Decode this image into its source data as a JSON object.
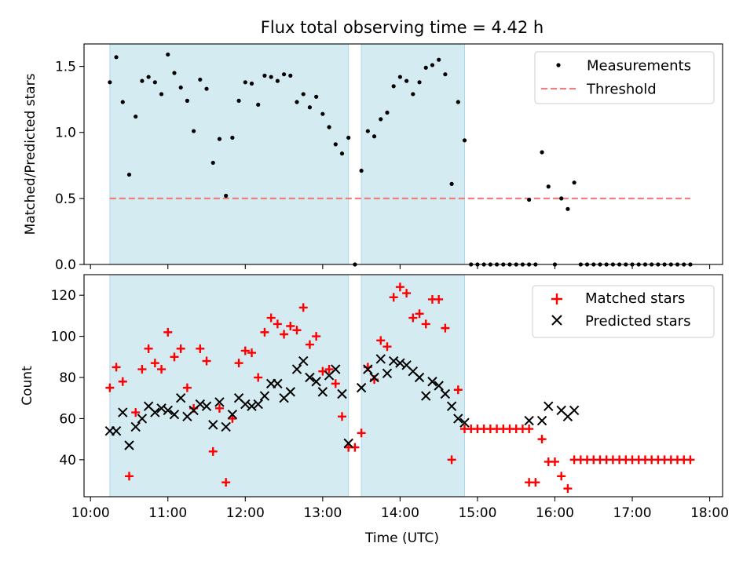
{
  "title": "Flux total observing time = 4.42 h",
  "shaded_intervals": [
    [
      "10:15",
      "13:20"
    ],
    [
      "13:30",
      "14:50"
    ]
  ],
  "colors": {
    "shade": "#add8e6",
    "threshold": "#f08080",
    "matched": "#ff0000",
    "predicted": "#000000",
    "measurement": "#000000"
  },
  "chart_data": [
    {
      "type": "scatter",
      "ylabel": "Matched/Predicted stars",
      "xlim": [
        "09:55",
        "18:10"
      ],
      "ylim": [
        0,
        1.67
      ],
      "yticks": [
        0.0,
        0.5,
        1.0,
        1.5
      ],
      "ytick_labels": [
        "0.0",
        "0.5",
        "1.0",
        "1.5"
      ],
      "legend": {
        "placement": "upper right",
        "entries": [
          "Measurements",
          "Threshold"
        ]
      },
      "threshold": {
        "name": "Threshold",
        "value": 0.5,
        "x_range": [
          "10:15",
          "17:45"
        ],
        "style": "dashed"
      },
      "series": [
        {
          "name": "Measurements",
          "marker": "dot",
          "points": [
            [
              "10:15",
              1.38
            ],
            [
              "10:20",
              1.57
            ],
            [
              "10:25",
              1.23
            ],
            [
              "10:30",
              0.68
            ],
            [
              "10:35",
              1.12
            ],
            [
              "10:40",
              1.39
            ],
            [
              "10:45",
              1.42
            ],
            [
              "10:50",
              1.38
            ],
            [
              "10:55",
              1.29
            ],
            [
              "11:00",
              1.59
            ],
            [
              "11:05",
              1.45
            ],
            [
              "11:10",
              1.34
            ],
            [
              "11:15",
              1.24
            ],
            [
              "11:20",
              1.01
            ],
            [
              "11:25",
              1.4
            ],
            [
              "11:30",
              1.33
            ],
            [
              "11:35",
              0.77
            ],
            [
              "11:40",
              0.95
            ],
            [
              "11:45",
              0.52
            ],
            [
              "11:50",
              0.96
            ],
            [
              "11:55",
              1.24
            ],
            [
              "12:00",
              1.38
            ],
            [
              "12:05",
              1.37
            ],
            [
              "12:10",
              1.21
            ],
            [
              "12:15",
              1.43
            ],
            [
              "12:20",
              1.42
            ],
            [
              "12:25",
              1.39
            ],
            [
              "12:30",
              1.44
            ],
            [
              "12:35",
              1.43
            ],
            [
              "12:40",
              1.23
            ],
            [
              "12:45",
              1.29
            ],
            [
              "12:50",
              1.19
            ],
            [
              "12:55",
              1.27
            ],
            [
              "13:00",
              1.14
            ],
            [
              "13:05",
              1.04
            ],
            [
              "13:10",
              0.91
            ],
            [
              "13:15",
              0.84
            ],
            [
              "13:20",
              0.96
            ],
            [
              "13:25",
              0.0
            ],
            [
              "13:30",
              0.71
            ],
            [
              "13:35",
              1.01
            ],
            [
              "13:40",
              0.97
            ],
            [
              "13:45",
              1.1
            ],
            [
              "13:50",
              1.15
            ],
            [
              "13:55",
              1.35
            ],
            [
              "14:00",
              1.42
            ],
            [
              "14:05",
              1.39
            ],
            [
              "14:10",
              1.29
            ],
            [
              "14:15",
              1.38
            ],
            [
              "14:20",
              1.49
            ],
            [
              "14:25",
              1.51
            ],
            [
              "14:30",
              1.55
            ],
            [
              "14:35",
              1.44
            ],
            [
              "14:40",
              0.61
            ],
            [
              "14:45",
              1.23
            ],
            [
              "14:50",
              0.94
            ],
            [
              "14:55",
              0
            ],
            [
              "15:00",
              0
            ],
            [
              "15:05",
              0
            ],
            [
              "15:10",
              0
            ],
            [
              "15:15",
              0
            ],
            [
              "15:20",
              0
            ],
            [
              "15:25",
              0
            ],
            [
              "15:30",
              0
            ],
            [
              "15:35",
              0
            ],
            [
              "15:40",
              0
            ],
            [
              "15:40",
              0.49
            ],
            [
              "15:45",
              0
            ],
            [
              "15:50",
              0.85
            ],
            [
              "15:55",
              0.59
            ],
            [
              "16:00",
              0
            ],
            [
              "16:05",
              0.5
            ],
            [
              "16:10",
              0.42
            ],
            [
              "16:15",
              0.62
            ],
            [
              "16:20",
              0
            ],
            [
              "16:25",
              0
            ],
            [
              "16:30",
              0
            ],
            [
              "16:35",
              0
            ],
            [
              "16:40",
              0
            ],
            [
              "16:45",
              0
            ],
            [
              "16:50",
              0
            ],
            [
              "16:55",
              0
            ],
            [
              "17:00",
              0
            ],
            [
              "17:05",
              0
            ],
            [
              "17:10",
              0
            ],
            [
              "17:15",
              0
            ],
            [
              "17:20",
              0
            ],
            [
              "17:25",
              0
            ],
            [
              "17:30",
              0
            ],
            [
              "17:35",
              0
            ],
            [
              "17:40",
              0
            ],
            [
              "17:45",
              0
            ]
          ]
        }
      ]
    },
    {
      "type": "scatter",
      "xlabel": "Time (UTC)",
      "ylabel": "Count",
      "xlim": [
        "09:55",
        "18:10"
      ],
      "ylim": [
        22,
        130
      ],
      "yticks": [
        40,
        60,
        80,
        100,
        120
      ],
      "xticks": [
        "10:00",
        "11:00",
        "12:00",
        "13:00",
        "14:00",
        "15:00",
        "16:00",
        "17:00",
        "18:00"
      ],
      "legend": {
        "placement": "upper right",
        "entries": [
          "Matched stars",
          "Predicted stars"
        ]
      },
      "series": [
        {
          "name": "Matched stars",
          "marker": "plus",
          "points": [
            [
              "10:15",
              75
            ],
            [
              "10:20",
              85
            ],
            [
              "10:25",
              78
            ],
            [
              "10:30",
              32
            ],
            [
              "10:35",
              63
            ],
            [
              "10:40",
              84
            ],
            [
              "10:45",
              94
            ],
            [
              "10:50",
              87
            ],
            [
              "10:55",
              84
            ],
            [
              "11:00",
              102
            ],
            [
              "11:05",
              90
            ],
            [
              "11:10",
              94
            ],
            [
              "11:15",
              75
            ],
            [
              "11:20",
              65
            ],
            [
              "11:25",
              94
            ],
            [
              "11:30",
              88
            ],
            [
              "11:35",
              44
            ],
            [
              "11:40",
              65
            ],
            [
              "11:45",
              29
            ],
            [
              "11:50",
              60
            ],
            [
              "11:55",
              87
            ],
            [
              "12:00",
              93
            ],
            [
              "12:05",
              92
            ],
            [
              "12:10",
              80
            ],
            [
              "12:15",
              102
            ],
            [
              "12:20",
              109
            ],
            [
              "12:25",
              106
            ],
            [
              "12:30",
              101
            ],
            [
              "12:35",
              105
            ],
            [
              "12:40",
              103
            ],
            [
              "12:45",
              114
            ],
            [
              "12:50",
              96
            ],
            [
              "12:55",
              100
            ],
            [
              "13:00",
              83
            ],
            [
              "13:05",
              84
            ],
            [
              "13:10",
              77
            ],
            [
              "13:15",
              61
            ],
            [
              "13:20",
              46
            ],
            [
              "13:25",
              46
            ],
            [
              "13:30",
              53
            ],
            [
              "13:35",
              85
            ],
            [
              "13:40",
              79
            ],
            [
              "13:45",
              98
            ],
            [
              "13:50",
              95
            ],
            [
              "13:55",
              119
            ],
            [
              "14:00",
              124
            ],
            [
              "14:05",
              121
            ],
            [
              "14:10",
              109
            ],
            [
              "14:15",
              111
            ],
            [
              "14:20",
              106
            ],
            [
              "14:25",
              118
            ],
            [
              "14:30",
              118
            ],
            [
              "14:35",
              104
            ],
            [
              "14:40",
              40
            ],
            [
              "14:45",
              74
            ],
            [
              "14:50",
              55
            ],
            [
              "14:55",
              55
            ],
            [
              "15:00",
              55
            ],
            [
              "15:05",
              55
            ],
            [
              "15:10",
              55
            ],
            [
              "15:15",
              55
            ],
            [
              "15:20",
              55
            ],
            [
              "15:25",
              55
            ],
            [
              "15:30",
              55
            ],
            [
              "15:35",
              55
            ],
            [
              "15:40",
              55
            ],
            [
              "15:40",
              29
            ],
            [
              "15:45",
              29
            ],
            [
              "15:50",
              50
            ],
            [
              "15:55",
              39
            ],
            [
              "16:00",
              39
            ],
            [
              "16:05",
              32
            ],
            [
              "16:10",
              26
            ],
            [
              "16:15",
              40
            ],
            [
              "16:20",
              40
            ],
            [
              "16:25",
              40
            ],
            [
              "16:30",
              40
            ],
            [
              "16:35",
              40
            ],
            [
              "16:40",
              40
            ],
            [
              "16:45",
              40
            ],
            [
              "16:50",
              40
            ],
            [
              "16:55",
              40
            ],
            [
              "17:00",
              40
            ],
            [
              "17:05",
              40
            ],
            [
              "17:10",
              40
            ],
            [
              "17:15",
              40
            ],
            [
              "17:20",
              40
            ],
            [
              "17:25",
              40
            ],
            [
              "17:30",
              40
            ],
            [
              "17:35",
              40
            ],
            [
              "17:40",
              40
            ],
            [
              "17:45",
              40
            ]
          ]
        },
        {
          "name": "Predicted stars",
          "marker": "x",
          "points": [
            [
              "10:15",
              54
            ],
            [
              "10:20",
              54
            ],
            [
              "10:25",
              63
            ],
            [
              "10:30",
              47
            ],
            [
              "10:35",
              56
            ],
            [
              "10:40",
              60
            ],
            [
              "10:45",
              66
            ],
            [
              "10:50",
              63
            ],
            [
              "10:55",
              65
            ],
            [
              "11:00",
              64
            ],
            [
              "11:05",
              62
            ],
            [
              "11:10",
              70
            ],
            [
              "11:15",
              61
            ],
            [
              "11:20",
              64
            ],
            [
              "11:25",
              67
            ],
            [
              "11:30",
              66
            ],
            [
              "11:35",
              57
            ],
            [
              "11:40",
              68
            ],
            [
              "11:45",
              56
            ],
            [
              "11:50",
              62
            ],
            [
              "11:55",
              70
            ],
            [
              "12:00",
              67
            ],
            [
              "12:05",
              66
            ],
            [
              "12:10",
              67
            ],
            [
              "12:15",
              71
            ],
            [
              "12:20",
              77
            ],
            [
              "12:25",
              77
            ],
            [
              "12:30",
              70
            ],
            [
              "12:35",
              73
            ],
            [
              "12:40",
              84
            ],
            [
              "12:45",
              88
            ],
            [
              "12:50",
              80
            ],
            [
              "12:55",
              78
            ],
            [
              "13:00",
              73
            ],
            [
              "13:05",
              81
            ],
            [
              "13:10",
              84
            ],
            [
              "13:15",
              72
            ],
            [
              "13:20",
              48
            ],
            [
              "13:30",
              75
            ],
            [
              "13:35",
              84
            ],
            [
              "13:40",
              80
            ],
            [
              "13:45",
              89
            ],
            [
              "13:50",
              82
            ],
            [
              "13:55",
              88
            ],
            [
              "14:00",
              87
            ],
            [
              "14:05",
              86
            ],
            [
              "14:10",
              83
            ],
            [
              "14:15",
              80
            ],
            [
              "14:20",
              71
            ],
            [
              "14:25",
              78
            ],
            [
              "14:30",
              76
            ],
            [
              "14:35",
              72
            ],
            [
              "14:40",
              66
            ],
            [
              "14:45",
              60
            ],
            [
              "14:50",
              58
            ],
            [
              "15:40",
              59
            ],
            [
              "15:50",
              59
            ],
            [
              "15:55",
              66
            ],
            [
              "16:05",
              64
            ],
            [
              "16:10",
              61
            ],
            [
              "16:15",
              64
            ]
          ]
        }
      ]
    }
  ]
}
